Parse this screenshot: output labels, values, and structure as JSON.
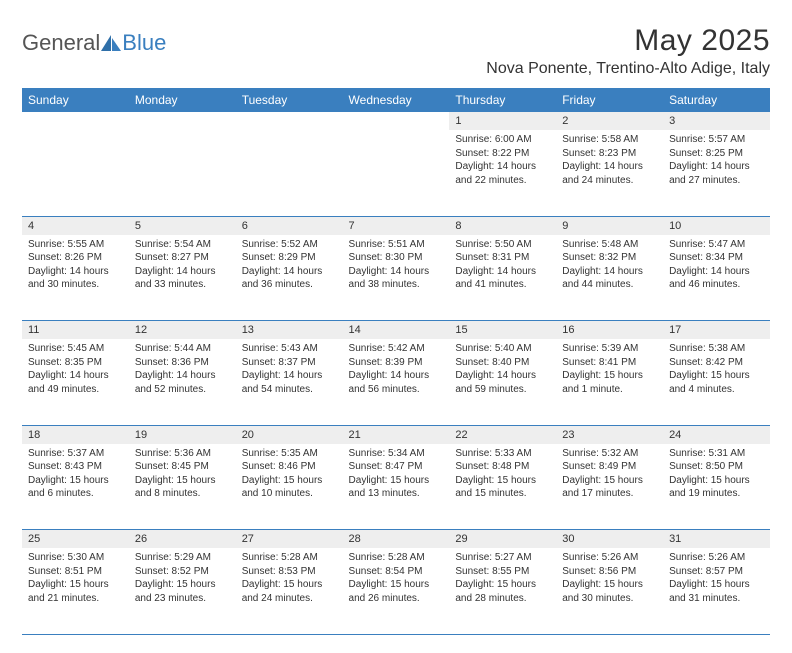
{
  "brand": {
    "part1": "General",
    "part2": "Blue"
  },
  "title": "May 2025",
  "location": "Nova Ponente, Trentino-Alto Adige, Italy",
  "colors": {
    "header_bg": "#3a7fbf",
    "header_text": "#ffffff",
    "daynum_bg": "#eeeeee",
    "divider": "#3a7fbf",
    "body_text": "#333333",
    "page_bg": "#ffffff"
  },
  "weekdays": [
    "Sunday",
    "Monday",
    "Tuesday",
    "Wednesday",
    "Thursday",
    "Friday",
    "Saturday"
  ],
  "weeks": [
    [
      null,
      null,
      null,
      null,
      {
        "n": "1",
        "sr": "Sunrise: 6:00 AM",
        "ss": "Sunset: 8:22 PM",
        "dl1": "Daylight: 14 hours",
        "dl2": "and 22 minutes."
      },
      {
        "n": "2",
        "sr": "Sunrise: 5:58 AM",
        "ss": "Sunset: 8:23 PM",
        "dl1": "Daylight: 14 hours",
        "dl2": "and 24 minutes."
      },
      {
        "n": "3",
        "sr": "Sunrise: 5:57 AM",
        "ss": "Sunset: 8:25 PM",
        "dl1": "Daylight: 14 hours",
        "dl2": "and 27 minutes."
      }
    ],
    [
      {
        "n": "4",
        "sr": "Sunrise: 5:55 AM",
        "ss": "Sunset: 8:26 PM",
        "dl1": "Daylight: 14 hours",
        "dl2": "and 30 minutes."
      },
      {
        "n": "5",
        "sr": "Sunrise: 5:54 AM",
        "ss": "Sunset: 8:27 PM",
        "dl1": "Daylight: 14 hours",
        "dl2": "and 33 minutes."
      },
      {
        "n": "6",
        "sr": "Sunrise: 5:52 AM",
        "ss": "Sunset: 8:29 PM",
        "dl1": "Daylight: 14 hours",
        "dl2": "and 36 minutes."
      },
      {
        "n": "7",
        "sr": "Sunrise: 5:51 AM",
        "ss": "Sunset: 8:30 PM",
        "dl1": "Daylight: 14 hours",
        "dl2": "and 38 minutes."
      },
      {
        "n": "8",
        "sr": "Sunrise: 5:50 AM",
        "ss": "Sunset: 8:31 PM",
        "dl1": "Daylight: 14 hours",
        "dl2": "and 41 minutes."
      },
      {
        "n": "9",
        "sr": "Sunrise: 5:48 AM",
        "ss": "Sunset: 8:32 PM",
        "dl1": "Daylight: 14 hours",
        "dl2": "and 44 minutes."
      },
      {
        "n": "10",
        "sr": "Sunrise: 5:47 AM",
        "ss": "Sunset: 8:34 PM",
        "dl1": "Daylight: 14 hours",
        "dl2": "and 46 minutes."
      }
    ],
    [
      {
        "n": "11",
        "sr": "Sunrise: 5:45 AM",
        "ss": "Sunset: 8:35 PM",
        "dl1": "Daylight: 14 hours",
        "dl2": "and 49 minutes."
      },
      {
        "n": "12",
        "sr": "Sunrise: 5:44 AM",
        "ss": "Sunset: 8:36 PM",
        "dl1": "Daylight: 14 hours",
        "dl2": "and 52 minutes."
      },
      {
        "n": "13",
        "sr": "Sunrise: 5:43 AM",
        "ss": "Sunset: 8:37 PM",
        "dl1": "Daylight: 14 hours",
        "dl2": "and 54 minutes."
      },
      {
        "n": "14",
        "sr": "Sunrise: 5:42 AM",
        "ss": "Sunset: 8:39 PM",
        "dl1": "Daylight: 14 hours",
        "dl2": "and 56 minutes."
      },
      {
        "n": "15",
        "sr": "Sunrise: 5:40 AM",
        "ss": "Sunset: 8:40 PM",
        "dl1": "Daylight: 14 hours",
        "dl2": "and 59 minutes."
      },
      {
        "n": "16",
        "sr": "Sunrise: 5:39 AM",
        "ss": "Sunset: 8:41 PM",
        "dl1": "Daylight: 15 hours",
        "dl2": "and 1 minute."
      },
      {
        "n": "17",
        "sr": "Sunrise: 5:38 AM",
        "ss": "Sunset: 8:42 PM",
        "dl1": "Daylight: 15 hours",
        "dl2": "and 4 minutes."
      }
    ],
    [
      {
        "n": "18",
        "sr": "Sunrise: 5:37 AM",
        "ss": "Sunset: 8:43 PM",
        "dl1": "Daylight: 15 hours",
        "dl2": "and 6 minutes."
      },
      {
        "n": "19",
        "sr": "Sunrise: 5:36 AM",
        "ss": "Sunset: 8:45 PM",
        "dl1": "Daylight: 15 hours",
        "dl2": "and 8 minutes."
      },
      {
        "n": "20",
        "sr": "Sunrise: 5:35 AM",
        "ss": "Sunset: 8:46 PM",
        "dl1": "Daylight: 15 hours",
        "dl2": "and 10 minutes."
      },
      {
        "n": "21",
        "sr": "Sunrise: 5:34 AM",
        "ss": "Sunset: 8:47 PM",
        "dl1": "Daylight: 15 hours",
        "dl2": "and 13 minutes."
      },
      {
        "n": "22",
        "sr": "Sunrise: 5:33 AM",
        "ss": "Sunset: 8:48 PM",
        "dl1": "Daylight: 15 hours",
        "dl2": "and 15 minutes."
      },
      {
        "n": "23",
        "sr": "Sunrise: 5:32 AM",
        "ss": "Sunset: 8:49 PM",
        "dl1": "Daylight: 15 hours",
        "dl2": "and 17 minutes."
      },
      {
        "n": "24",
        "sr": "Sunrise: 5:31 AM",
        "ss": "Sunset: 8:50 PM",
        "dl1": "Daylight: 15 hours",
        "dl2": "and 19 minutes."
      }
    ],
    [
      {
        "n": "25",
        "sr": "Sunrise: 5:30 AM",
        "ss": "Sunset: 8:51 PM",
        "dl1": "Daylight: 15 hours",
        "dl2": "and 21 minutes."
      },
      {
        "n": "26",
        "sr": "Sunrise: 5:29 AM",
        "ss": "Sunset: 8:52 PM",
        "dl1": "Daylight: 15 hours",
        "dl2": "and 23 minutes."
      },
      {
        "n": "27",
        "sr": "Sunrise: 5:28 AM",
        "ss": "Sunset: 8:53 PM",
        "dl1": "Daylight: 15 hours",
        "dl2": "and 24 minutes."
      },
      {
        "n": "28",
        "sr": "Sunrise: 5:28 AM",
        "ss": "Sunset: 8:54 PM",
        "dl1": "Daylight: 15 hours",
        "dl2": "and 26 minutes."
      },
      {
        "n": "29",
        "sr": "Sunrise: 5:27 AM",
        "ss": "Sunset: 8:55 PM",
        "dl1": "Daylight: 15 hours",
        "dl2": "and 28 minutes."
      },
      {
        "n": "30",
        "sr": "Sunrise: 5:26 AM",
        "ss": "Sunset: 8:56 PM",
        "dl1": "Daylight: 15 hours",
        "dl2": "and 30 minutes."
      },
      {
        "n": "31",
        "sr": "Sunrise: 5:26 AM",
        "ss": "Sunset: 8:57 PM",
        "dl1": "Daylight: 15 hours",
        "dl2": "and 31 minutes."
      }
    ]
  ]
}
